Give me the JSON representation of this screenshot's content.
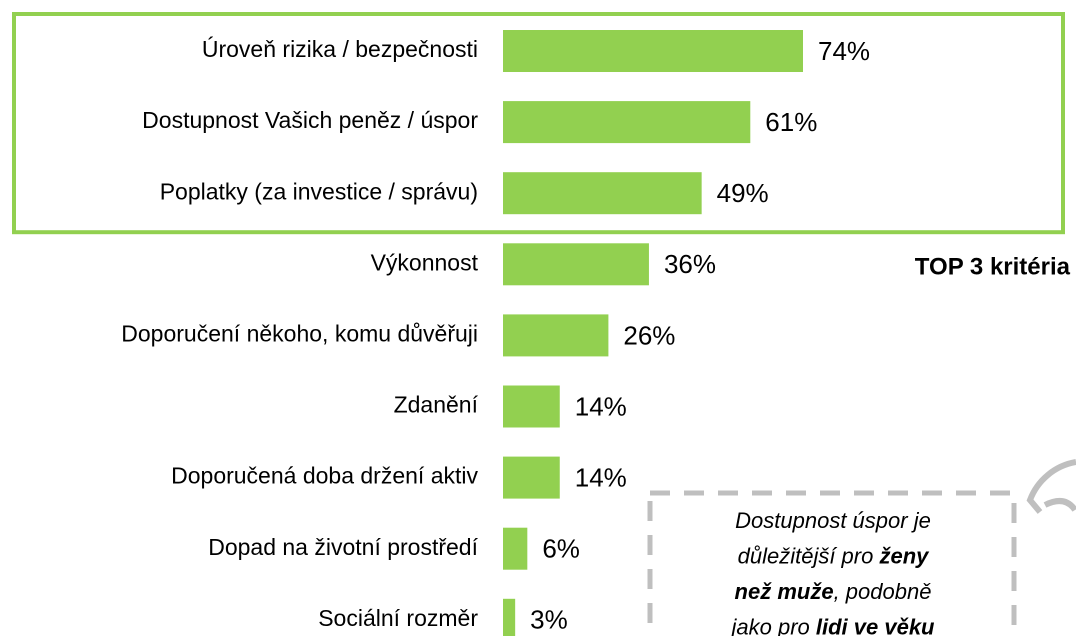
{
  "chart_data": {
    "type": "bar",
    "orientation": "horizontal",
    "categories": [
      "Úroveň rizika / bezpečnosti",
      "Dostupnost Vašich peněz / úspor",
      "Poplatky (za investice / správu)",
      "Výkonnost",
      "Doporučení někoho, komu důvěřuji",
      "Zdanění",
      "Doporučená doba držení aktiv",
      "Dopad na životní prostředí",
      "Sociální rozměr"
    ],
    "values": [
      74,
      61,
      49,
      36,
      26,
      14,
      14,
      6,
      3
    ],
    "value_labels": [
      "74%",
      "61%",
      "49%",
      "36%",
      "26%",
      "14%",
      "14%",
      "6%",
      "3%"
    ],
    "color": "#92d050",
    "highlight": {
      "label": "TOP 3 kritéria",
      "count": 3,
      "color": "#92d050"
    },
    "callout": {
      "lines": [
        [
          {
            "text": "Dostupnost úspor je"
          }
        ],
        [
          {
            "text": "důležitější pro "
          },
          {
            "text": "ženy",
            "bold": true
          }
        ],
        [
          {
            "text": "než muže",
            "bold": true
          },
          {
            "text": ", podobně"
          }
        ],
        [
          {
            "text": "jako pro "
          },
          {
            "text": "lidi ve věku",
            "bold": true
          }
        ]
      ]
    }
  }
}
